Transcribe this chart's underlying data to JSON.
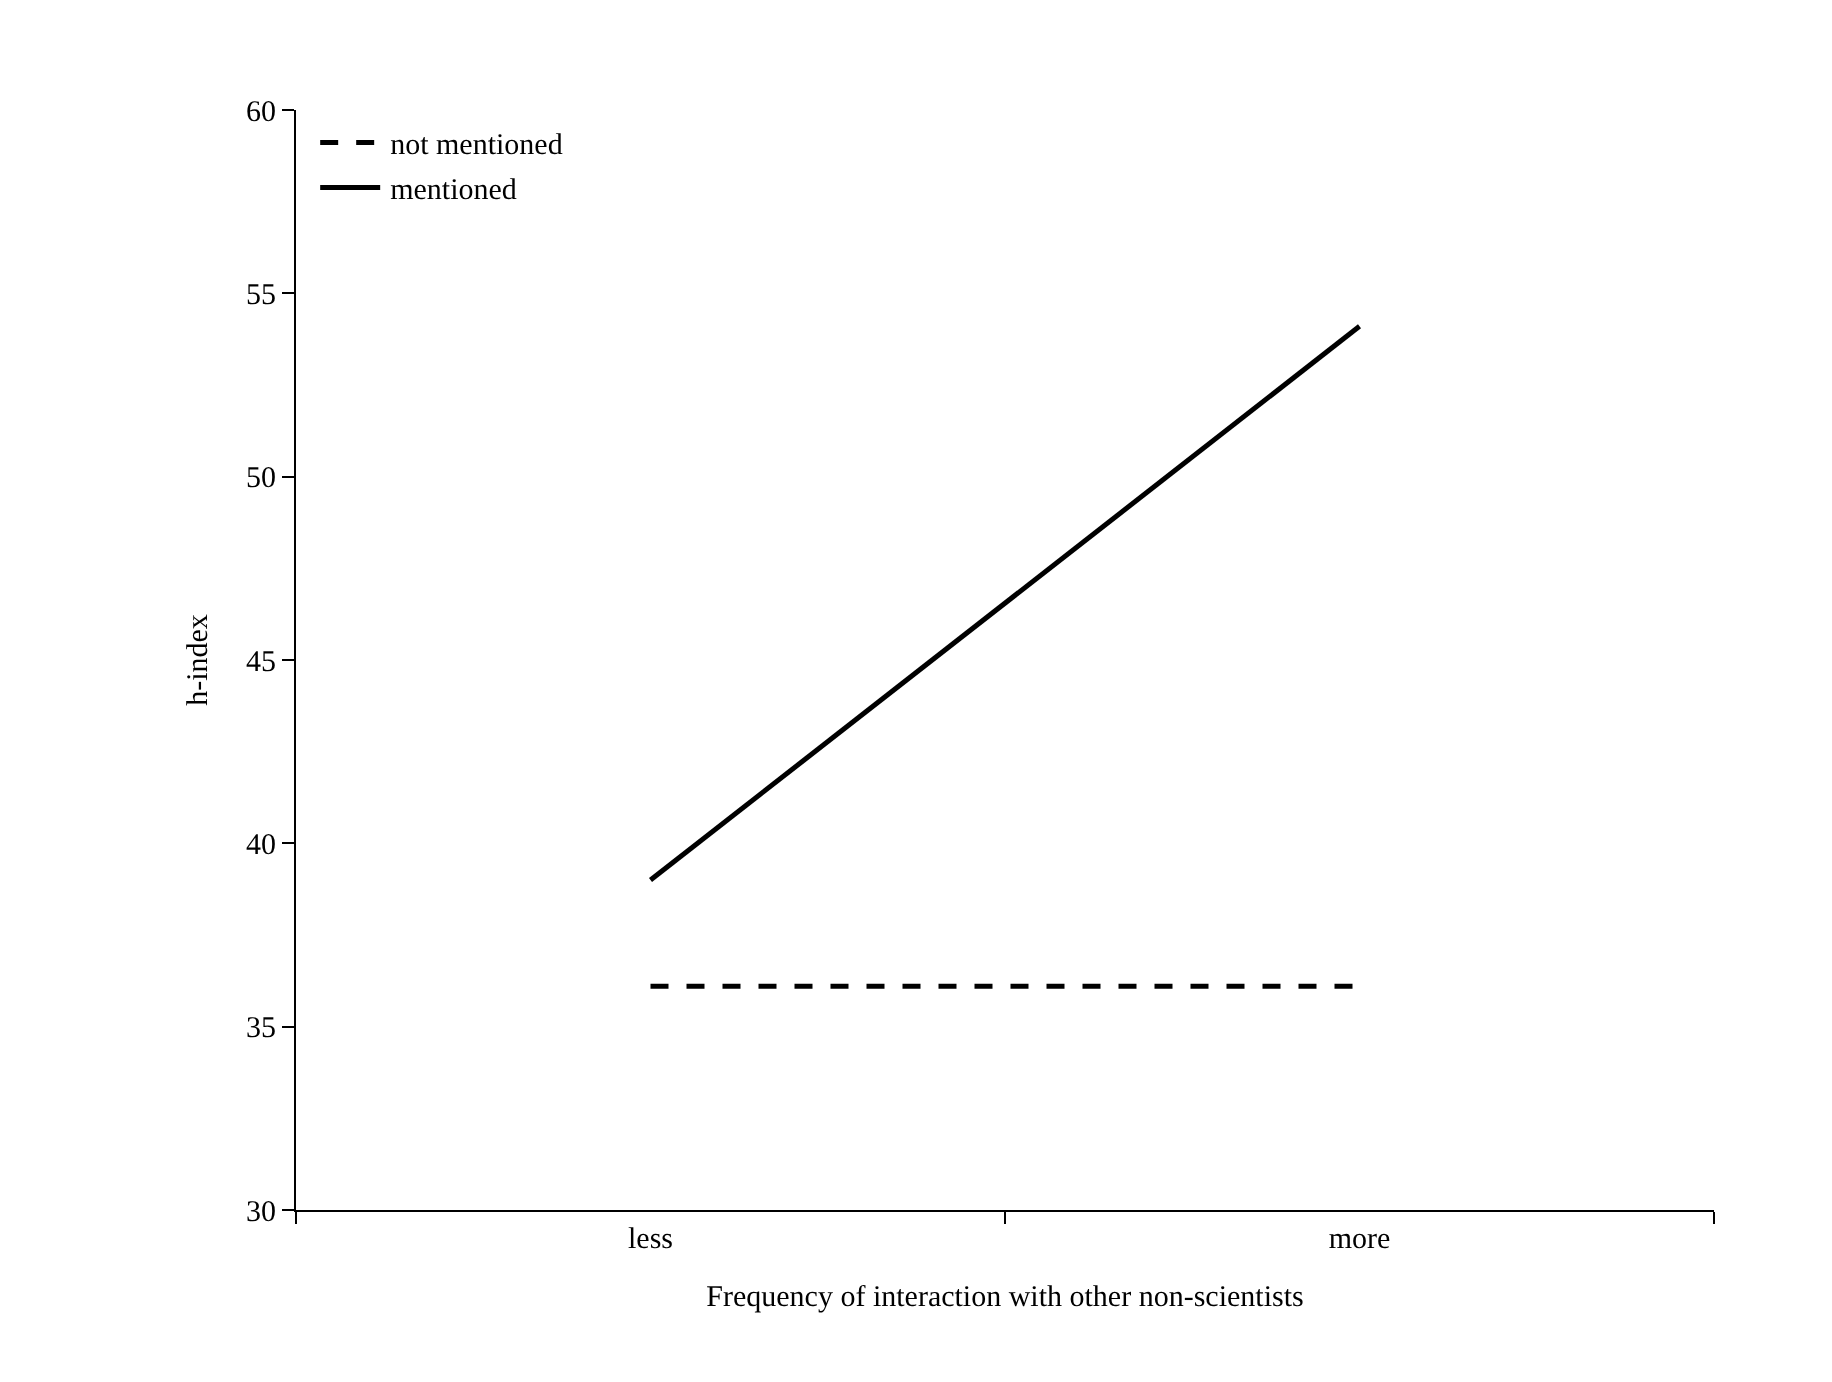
{
  "chart_data": {
    "type": "line",
    "xlabel": "Frequency of interaction with other non-scientists",
    "ylabel": "h-index",
    "categories": [
      "less",
      "more"
    ],
    "series": [
      {
        "name": "not mentioned",
        "color": "#000000",
        "line_style": "dashed",
        "values": [
          36.1,
          36.1
        ]
      },
      {
        "name": "mentioned",
        "color": "#000000",
        "line_style": "solid",
        "values": [
          39.0,
          54.1
        ]
      }
    ],
    "ylim": [
      30,
      60
    ],
    "yticks": [
      30,
      35,
      40,
      45,
      50,
      55,
      60
    ],
    "legend": "top left",
    "marker": "none"
  }
}
